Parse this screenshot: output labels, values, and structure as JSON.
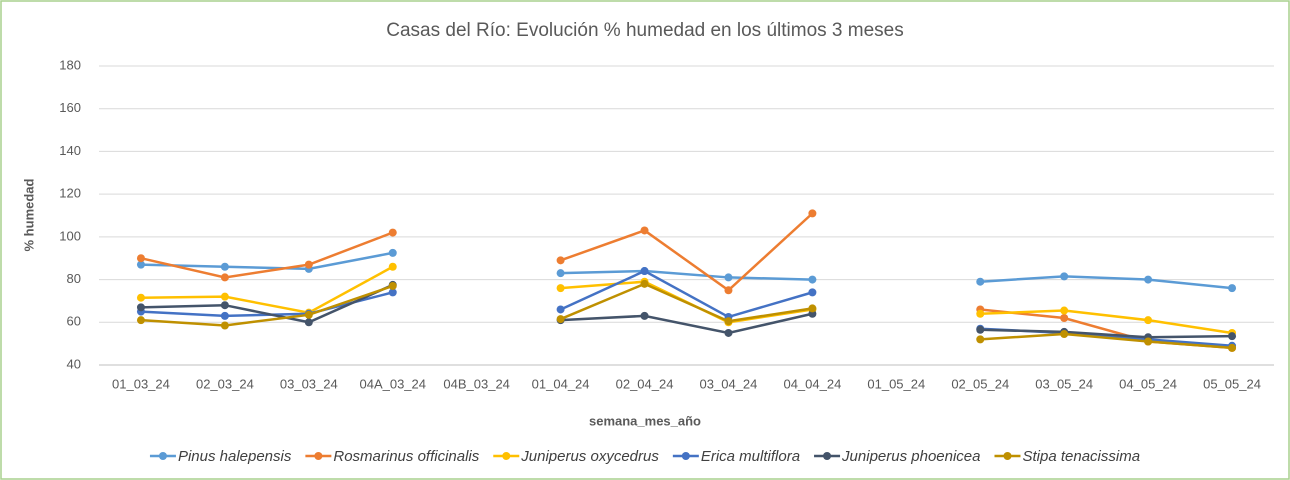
{
  "chart_data": {
    "type": "line",
    "title": "Casas del Río: Evolución % humedad en los últimos 3 meses",
    "x_label": "semana_mes_año",
    "y_label": "% humedad",
    "categories": [
      "01_03_24",
      "02_03_24",
      "03_03_24",
      "04A_03_24",
      "04B_03_24",
      "01_04_24",
      "02_04_24",
      "03_04_24",
      "04_04_24",
      "01_05_24",
      "02_05_24",
      "03_05_24",
      "04_05_24",
      "05_05_24"
    ],
    "series": [
      {
        "name": "Pinus halepensis",
        "color": "#5b9bd5",
        "values": [
          87,
          86,
          85,
          92.5,
          null,
          83,
          84,
          81,
          80,
          null,
          79,
          81.5,
          80,
          76
        ]
      },
      {
        "name": "Rosmarinus officinalis",
        "color": "#ed7d31",
        "values": [
          90,
          81,
          87,
          102,
          null,
          89,
          103,
          75,
          111,
          null,
          66,
          62,
          51,
          48
        ]
      },
      {
        "name": "Juniperus oxycedrus",
        "color": "#ffc000",
        "values": [
          71.5,
          72,
          64.5,
          86,
          null,
          76,
          79,
          60,
          66,
          null,
          64,
          65.5,
          61,
          55
        ]
      },
      {
        "name": "Erica multiflora",
        "color": "#4472c4",
        "values": [
          65,
          63,
          64,
          74,
          null,
          66,
          84,
          62.5,
          74,
          null,
          57,
          55,
          52,
          49
        ]
      },
      {
        "name": "Juniperus phoenicea",
        "color": "#44546a",
        "values": [
          67,
          68,
          60,
          77.5,
          null,
          61,
          63,
          55,
          64,
          null,
          56.5,
          55.5,
          53,
          53.5
        ]
      },
      {
        "name": "Stipa tenacissima",
        "color": "#bf9000",
        "values": [
          61,
          58.5,
          63.5,
          77,
          null,
          61.5,
          78,
          60.5,
          66.5,
          null,
          52,
          54.5,
          51,
          48
        ]
      }
    ],
    "ylim": [
      40,
      180
    ],
    "yticks": [
      40,
      60,
      80,
      100,
      120,
      140,
      160,
      180
    ],
    "grid": true,
    "legend": "bottom"
  }
}
